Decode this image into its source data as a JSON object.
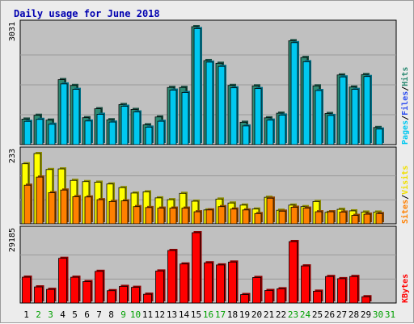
{
  "chart_data": {
    "type": "bar",
    "title": "Daily usage for June 2018",
    "categories": [
      "1",
      "2",
      "3",
      "4",
      "5",
      "6",
      "7",
      "8",
      "9",
      "10",
      "11",
      "12",
      "13",
      "14",
      "15",
      "16",
      "17",
      "18",
      "19",
      "20",
      "21",
      "22",
      "23",
      "24",
      "25",
      "26",
      "27",
      "28",
      "29",
      "30",
      "31"
    ],
    "weekend_days": [
      "2",
      "3",
      "9",
      "10",
      "16",
      "17",
      "23",
      "24",
      "30",
      "31"
    ],
    "panels": [
      {
        "id": "top",
        "max_label": "3031",
        "ymax": 3031,
        "legend": [
          {
            "label": "Pages",
            "color": "#00c8f0"
          },
          {
            "label": "Files",
            "color": "#3050f0"
          },
          {
            "label": "Hits",
            "color": "#2e8b74"
          }
        ],
        "series": [
          {
            "name": "Hits",
            "color": "#2e8b74",
            "values": [
              656,
              754,
              630,
              1670,
              1520,
              692,
              922,
              639,
              1030,
              904,
              510,
              711,
              1470,
              1470,
              3031,
              2160,
              2090,
              1520,
              574,
              1510,
              689,
              808,
              2670,
              2240,
              1510,
              800,
              1790,
              1480,
              1800,
              440,
              0
            ]
          },
          {
            "name": "Pages",
            "color": "#00c8f0",
            "values": [
              597,
              649,
              524,
              1560,
              1420,
              607,
              780,
              580,
              986,
              840,
              450,
              600,
              1400,
              1340,
              2980,
              2120,
              2010,
              1460,
              480,
              1440,
              630,
              760,
              2620,
              2130,
              1390,
              750,
              1740,
              1420,
              1750,
              400,
              0
            ]
          }
        ]
      },
      {
        "id": "middle",
        "max_label": "233",
        "ymax": 233,
        "legend": [
          {
            "label": "Sites",
            "color": "#ff8000"
          },
          {
            "label": "Visits",
            "color": "#f0e000"
          }
        ],
        "series": [
          {
            "name": "Visits",
            "color": "#ffff00",
            "values": [
              199,
              233,
              180,
              182,
              144,
              140,
              138,
              132,
              120,
              102,
              106,
              86,
              80,
              101,
              75,
              46,
              82,
              69,
              62,
              49,
              88,
              45,
              62,
              57,
              74,
              38,
              48,
              43,
              39,
              39,
              0
            ]
          },
          {
            "name": "Sites",
            "color": "#ff8000",
            "values": [
              128,
              155,
              103,
              112,
              90,
              89,
              80,
              74,
              76,
              57,
              54,
              52,
              52,
              52,
              40,
              46,
              57,
              49,
              46,
              34,
              85,
              42,
              55,
              52,
              40,
              40,
              39,
              28,
              32,
              34,
              0
            ]
          }
        ]
      },
      {
        "id": "bottom",
        "max_label": "29185",
        "ymax": 29185,
        "legend": [
          {
            "label": "KBytes",
            "color": "#ff0000"
          }
        ],
        "series": [
          {
            "name": "KBytes",
            "color": "#ff0000",
            "values": [
              10720,
              6680,
              5660,
              18560,
              10700,
              8880,
              13150,
              5120,
              6890,
              6510,
              3640,
              13290,
              21800,
              16200,
              29185,
              16700,
              15800,
              17000,
              3500,
              10600,
              5200,
              5900,
              25500,
              15400,
              4900,
              11000,
              10100,
              11000,
              2600,
              0,
              0
            ]
          }
        ]
      }
    ]
  }
}
